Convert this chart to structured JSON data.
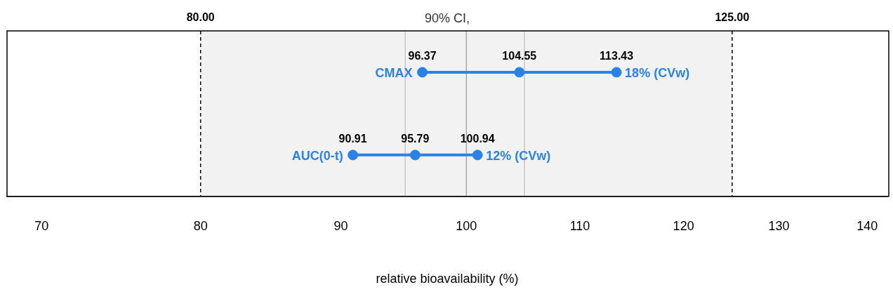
{
  "chart_data": {
    "type": "scatter",
    "orientation": "horizontal",
    "title": "90% CI,",
    "xlabel": "relative bioavailability (%)",
    "categories": [
      "CMAX",
      "AUC(0-t)"
    ],
    "series": [
      {
        "color": "#2b82e6",
        "values": [
          96.37,
          90.91
        ]
      },
      {
        "color": "#2b82e6",
        "values": [
          104.55,
          95.79
        ]
      },
      {
        "color": "#2b82e6",
        "values": [
          113.43,
          100.94
        ]
      }
    ],
    "data_labels": true,
    "marker": "circle",
    "log": "x",
    "xlim": [
      68,
      142.4
    ],
    "xticks": [
      70,
      80,
      90,
      100,
      110,
      120,
      130,
      140
    ],
    "tick_labels": "x",
    "grid": false,
    "legend": false,
    "bands": [
      {
        "axis": "x",
        "from": 80,
        "to": 125,
        "color": "#f2f2f2"
      }
    ],
    "ref_lines": [
      {
        "axis": "x",
        "value": 80,
        "label": "80.00",
        "color": "#000000",
        "line_style": "dashed"
      },
      {
        "axis": "x",
        "value": 125,
        "label": "125.00",
        "color": "#000000",
        "line_style": "dashed"
      },
      {
        "axis": "x",
        "value": 95,
        "color": "#c8c8c8",
        "line_style": "solid"
      },
      {
        "axis": "x",
        "value": 100,
        "color": "#a8a8a8",
        "line_style": "solid"
      },
      {
        "axis": "x",
        "value": 105,
        "color": "#c8c8c8",
        "line_style": "solid"
      }
    ],
    "annotations": [
      {
        "text": "18% (CVw)",
        "x": 113.43,
        "y": "CMAX"
      },
      {
        "text": "12% (CVw)",
        "x": 100.94,
        "y": "AUC(0-t)"
      }
    ]
  }
}
